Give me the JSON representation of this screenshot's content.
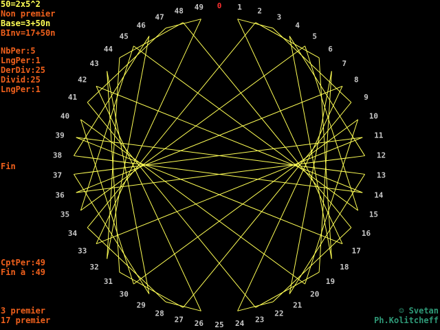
{
  "info": {
    "factorization": "50=2x5^2",
    "status": "Non premier",
    "base": "Base=3+50n",
    "binv": "BInv=17+50n",
    "nbper": "NbPer:5",
    "lngper1": "LngPer:1",
    "derdiv": "DerDiv:25",
    "divid": "Divid:25",
    "lngper2": "LngPer:1",
    "fin": "Fin",
    "cptper": "CptPer:49",
    "fin_a": "Fin à :49",
    "prime1": "3 premier",
    "prime2": "17 premier"
  },
  "credits": {
    "line1": "☺ Svetan",
    "line2": "Ph.Kolitcheff"
  },
  "diagram": {
    "modulus": 50,
    "multiplier": 3,
    "labels": [
      "0",
      "1",
      "2",
      "3",
      "4",
      "5",
      "6",
      "7",
      "8",
      "9",
      "10",
      "11",
      "12",
      "13",
      "14",
      "15",
      "16",
      "17",
      "18",
      "19",
      "20",
      "21",
      "22",
      "23",
      "24",
      "25",
      "26",
      "27",
      "28",
      "29",
      "30",
      "31",
      "32",
      "33",
      "34",
      "35",
      "36",
      "37",
      "38",
      "39",
      "40",
      "41",
      "42",
      "43",
      "44",
      "45",
      "46",
      "47",
      "48",
      "49"
    ],
    "colors": {
      "lines": "#ffff55",
      "labels": "#c8c8c8",
      "zero_label": "#ff3030",
      "inner": "#5555ff"
    }
  }
}
